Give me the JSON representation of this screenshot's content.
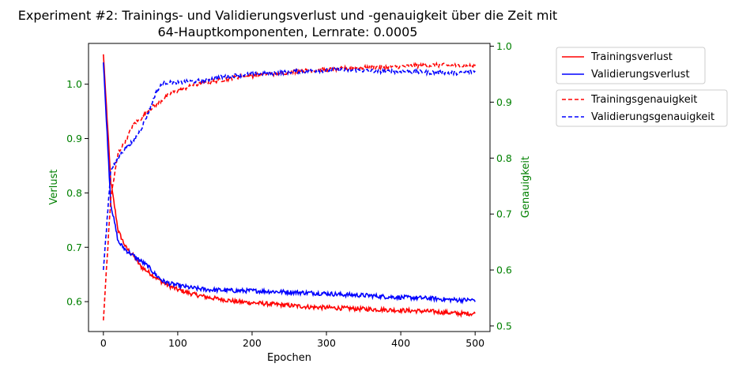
{
  "chart_data": {
    "type": "line",
    "title_line1": "Experiment #2: Trainings- und Validierungsverlust und -genauigkeit über die Zeit mit",
    "title_line2": "64-Hauptkomponenten, Lernrate: 0.0005",
    "xlabel": "Epochen",
    "ylabel_left": "Verlust",
    "ylabel_right": "Genauigkeit",
    "xlim": [
      -20,
      520
    ],
    "ylim_left": [
      0.545,
      1.075
    ],
    "ylim_right": [
      0.49,
      1.005
    ],
    "xticks": [
      0,
      100,
      200,
      300,
      400,
      500
    ],
    "yticks_left": [
      0.6,
      0.7,
      0.8,
      0.9,
      1.0
    ],
    "yticks_right": [
      0.5,
      0.6,
      0.7,
      0.8,
      0.9,
      1.0
    ],
    "tick_label_color": "#008000",
    "axis_label_color": "#008000",
    "x": [
      0,
      10,
      20,
      30,
      40,
      50,
      60,
      70,
      80,
      90,
      100,
      120,
      140,
      160,
      180,
      200,
      220,
      240,
      260,
      280,
      300,
      320,
      340,
      360,
      380,
      400,
      420,
      440,
      460,
      480,
      500
    ],
    "series": [
      {
        "name": "Trainingsverlust",
        "axis": "left",
        "color": "#ff0000",
        "style": "solid",
        "values": [
          1.055,
          0.82,
          0.73,
          0.7,
          0.685,
          0.665,
          0.655,
          0.645,
          0.635,
          0.628,
          0.622,
          0.614,
          0.608,
          0.604,
          0.6,
          0.598,
          0.596,
          0.594,
          0.592,
          0.59,
          0.589,
          0.588,
          0.587,
          0.586,
          0.585,
          0.584,
          0.583,
          0.582,
          0.58,
          0.578,
          0.578
        ]
      },
      {
        "name": "Validierungsverlust",
        "axis": "left",
        "color": "#0000ff",
        "style": "solid",
        "values": [
          1.04,
          0.78,
          0.71,
          0.695,
          0.685,
          0.675,
          0.665,
          0.65,
          0.638,
          0.633,
          0.63,
          0.625,
          0.622,
          0.621,
          0.62,
          0.62,
          0.619,
          0.618,
          0.617,
          0.616,
          0.615,
          0.613,
          0.612,
          0.611,
          0.609,
          0.608,
          0.607,
          0.606,
          0.604,
          0.603,
          0.603
        ]
      },
      {
        "name": "Trainingsgenauigkeit",
        "axis": "right",
        "color": "#ff0000",
        "style": "dashed",
        "values": [
          0.51,
          0.73,
          0.81,
          0.83,
          0.86,
          0.87,
          0.885,
          0.895,
          0.905,
          0.915,
          0.92,
          0.93,
          0.935,
          0.94,
          0.945,
          0.947,
          0.95,
          0.952,
          0.955,
          0.957,
          0.958,
          0.96,
          0.961,
          0.962,
          0.963,
          0.964,
          0.965,
          0.966,
          0.966,
          0.965,
          0.964
        ]
      },
      {
        "name": "Validierungsgenauigkeit",
        "axis": "right",
        "color": "#0000ff",
        "style": "dashed",
        "values": [
          0.6,
          0.78,
          0.8,
          0.82,
          0.83,
          0.85,
          0.88,
          0.915,
          0.935,
          0.935,
          0.935,
          0.937,
          0.94,
          0.945,
          0.948,
          0.95,
          0.951,
          0.953,
          0.955,
          0.956,
          0.957,
          0.958,
          0.957,
          0.956,
          0.955,
          0.955,
          0.954,
          0.953,
          0.953,
          0.952,
          0.955
        ]
      }
    ],
    "legend": {
      "placement": "outside-right",
      "group1": [
        "Trainingsverlust",
        "Validierungsverlust"
      ],
      "group2": [
        "Trainingsgenauigkeit",
        "Validierungsgenauigkeit"
      ]
    },
    "grid": false
  }
}
